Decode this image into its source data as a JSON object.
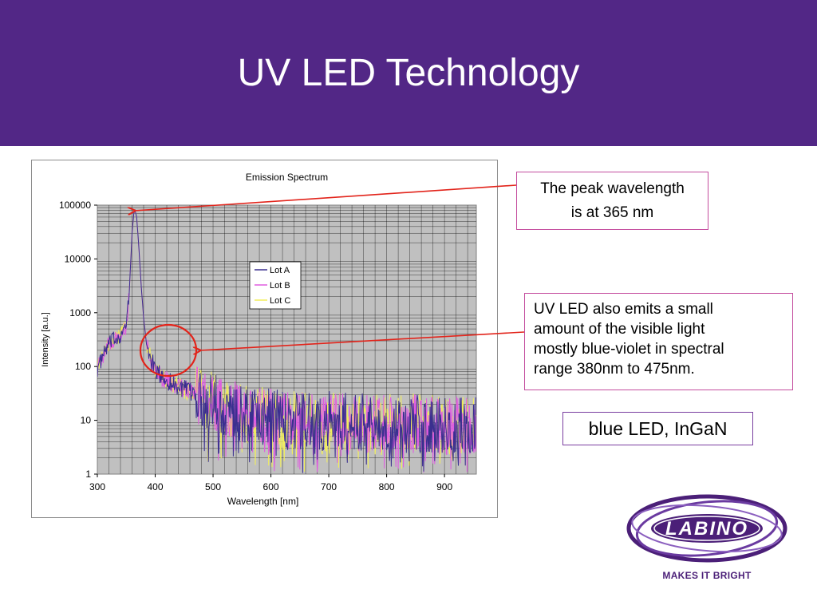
{
  "slide": {
    "title": "UV LED Technology",
    "colors": {
      "header": "#522786",
      "callout_border": "#c44d9e",
      "arrow": "#e2241b"
    }
  },
  "callouts": {
    "peak": [
      "The peak wavelength",
      "is at 365 nm"
    ],
    "visible": [
      "UV LED also emits a small",
      "amount of the visible light",
      "mostly blue-violet in spectral",
      "range 380nm to 475nm."
    ],
    "blue_led": "blue LED, InGaN"
  },
  "logo": {
    "wordmark": "LABINO",
    "tagline": "MAKES IT BRIGHT"
  },
  "chart_data": {
    "type": "line",
    "title": "Emission Spectrum",
    "xlabel": "Wavelength [nm]",
    "ylabel": "Intensity [a.u.]",
    "xlim": [
      300,
      955
    ],
    "ylim": [
      1,
      100000
    ],
    "y_scale": "log",
    "x_ticks": [
      300,
      400,
      500,
      600,
      700,
      800,
      900
    ],
    "y_ticks": [
      1,
      10,
      100,
      1000,
      10000,
      100000
    ],
    "y_tick_labels": [
      "1",
      "10",
      "100",
      "1000",
      "10000",
      "100000"
    ],
    "grid": true,
    "plot_background": "#c0c0c0",
    "legend_position": "center",
    "series": [
      {
        "name": "Lot A",
        "color": "#3a2f8f"
      },
      {
        "name": "Lot B",
        "color": "#e05ce0"
      },
      {
        "name": "Lot C",
        "color": "#f2ee5a"
      }
    ],
    "x": [
      300,
      310,
      320,
      330,
      340,
      350,
      355,
      360,
      363,
      365,
      368,
      372,
      376,
      380,
      385,
      390,
      395,
      400,
      410,
      420,
      430,
      440,
      450,
      460,
      470,
      480,
      490,
      500,
      520,
      540,
      560,
      580,
      600,
      650,
      700,
      750,
      800,
      850,
      900,
      955
    ],
    "y": [
      90,
      160,
      260,
      330,
      380,
      560,
      2200,
      30000,
      70000,
      80000,
      60000,
      15000,
      3000,
      800,
      260,
      160,
      120,
      90,
      65,
      55,
      48,
      42,
      38,
      34,
      30,
      27,
      24,
      22,
      18,
      15,
      13,
      12,
      11,
      10,
      10,
      9,
      9,
      9,
      8,
      8
    ]
  }
}
